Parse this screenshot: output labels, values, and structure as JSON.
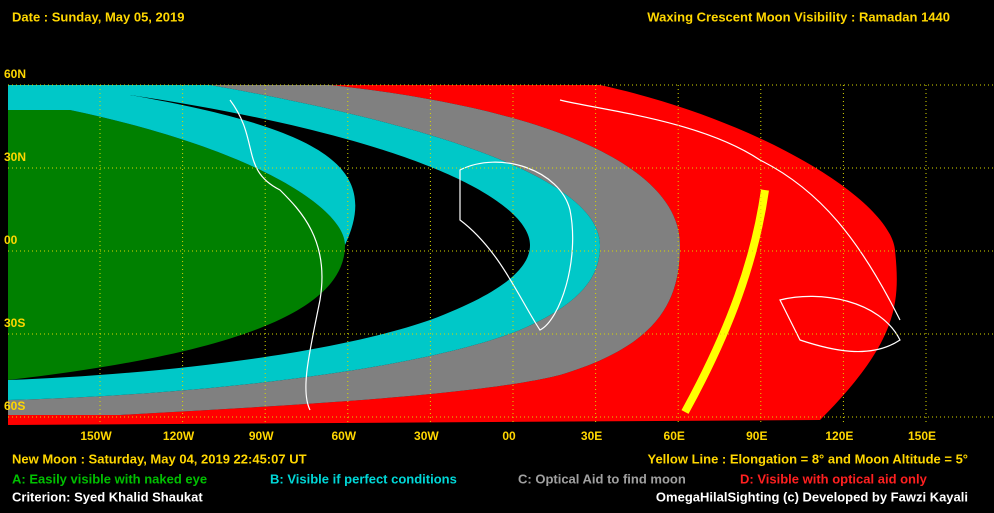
{
  "header": {
    "date": "Date : Sunday, May 05, 2019",
    "title": "Waxing Crescent Moon Visibility : Ramadan 1440"
  },
  "map": {
    "latitudes": [
      "60N",
      "30N",
      "00",
      "30S",
      "60S"
    ],
    "longitudes": [
      "150W",
      "120W",
      "90W",
      "60W",
      "30W",
      "00",
      "30E",
      "60E",
      "90E",
      "120E",
      "150E"
    ]
  },
  "footer": {
    "new_moon": "New Moon : Saturday, May 04, 2019  22:45:07  UT",
    "yellow_line": "Yellow Line : Elongation = 8° and Moon Altitude = 5°",
    "legend": [
      "A: Easily visible with naked eye",
      "B: Visible if perfect conditions",
      "C: Optical Aid to find moon",
      "D: Visible with optical aid only"
    ],
    "criterion": "Criterion: Syed Khalid Shaukat",
    "credit": "OmegaHilalSighting  (c)  Developed by Fawzi Kayali"
  }
}
